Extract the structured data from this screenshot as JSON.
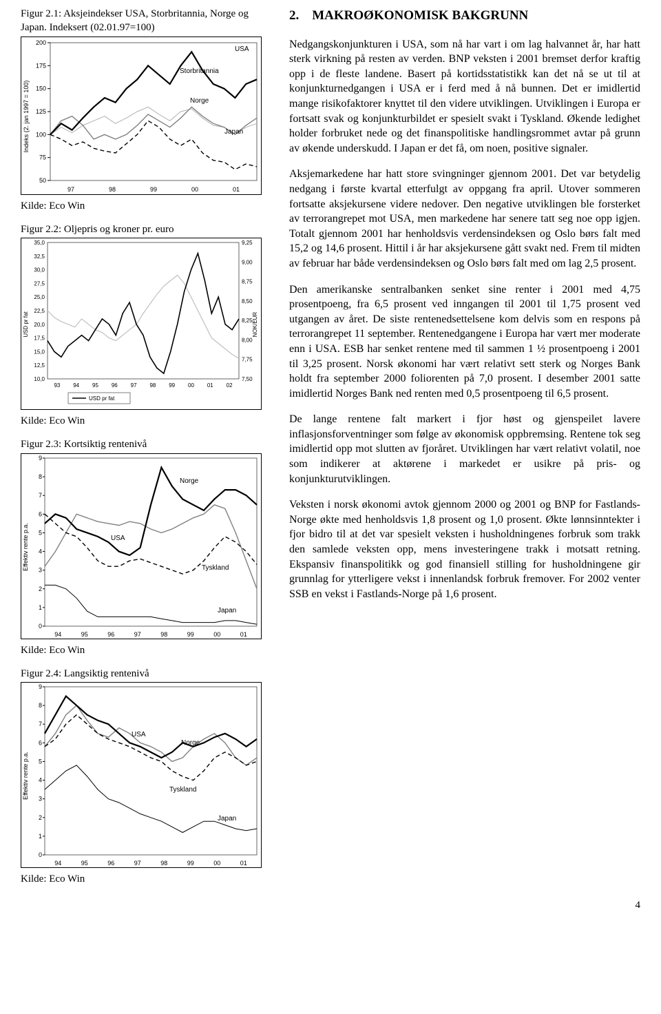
{
  "section": {
    "number": "2.",
    "title": "MAKROØKONOMISK BAKGRUNN"
  },
  "paragraphs": [
    "Nedgangskonjunkturen i USA, som nå har vart i om lag halvannet år, har hatt sterk virkning på resten av verden. BNP veksten i 2001 bremset derfor kraftig opp i de fleste landene. Basert på kortidsstatistikk kan det nå se ut til at konjunkturnedgangen i USA er i ferd med å nå bunnen. Det er imidlertid mange risikofaktorer knyttet til den videre utviklingen. Utviklingen i Europa er fortsatt svak og konjunkturbildet er spesielt svakt i Tyskland. Økende ledighet holder forbruket nede og det finanspolitiske handlingsrommet avtar på grunn av økende underskudd. I Japan er det få, om noen, positive signaler.",
    "Aksjemarkedene har hatt store svingninger gjennom 2001. Det var betydelig nedgang i første kvartal etterfulgt av oppgang fra april. Utover sommeren fortsatte aksjekursene videre nedover. Den negative utviklingen ble forsterket av terrorangrepet mot USA, men markedene har senere tatt seg noe opp igjen.  Totalt gjennom 2001 har henholdsvis verdensindeksen og Oslo børs falt med 15,2 og 14,6 prosent. Hittil i år har aksjekursene gått svakt ned. Frem til midten av februar har både verdensindeksen og Oslo børs falt med om lag 2,5 prosent.",
    "Den amerikanske sentralbanken senket sine renter i 2001 med 4,75 prosentpoeng, fra 6,5 prosent ved inngangen til 2001 til 1,75 prosent ved utgangen av året. De siste rentenedsettelsene kom delvis som en respons på terrorangrepet 11 september.  Rentenedgangene i Europa har vært mer moderate enn i USA. ESB har senket rentene med til sammen 1 ½ prosentpoeng i 2001 til 3,25 prosent.  Norsk økonomi har vært relativt sett sterk og Norges Bank holdt fra september 2000 foliorenten på 7,0 prosent. I desember 2001 satte imidlertid Norges Bank ned renten med 0,5 prosentpoeng til 6,5 prosent.",
    "De lange rentene falt markert i fjor høst og gjenspeilet lavere inflasjonsforventninger som følge av økonomisk oppbremsing.  Rentene tok seg imidlertid opp mot slutten av fjoråret. Utviklingen har vært relativt volatil, noe som indikerer at aktørene i markedet er usikre på pris- og konjunkturutviklingen.",
    "Veksten i norsk økonomi avtok gjennom 2000 og 2001 og BNP for Fastlands-Norge økte med henholdsvis 1,8 prosent og 1,0 prosent. Økte lønnsinntekter i fjor bidro til at det var spesielt veksten i husholdningenes forbruk som trakk den samlede veksten opp, mens investeringene trakk i motsatt retning. Ekspansiv finanspolitikk og god finansiell stilling for husholdningene gir grunnlag for ytterligere vekst i innenlandsk forbruk fremover. For 2002 venter SSB en vekst i Fastlands-Norge på 1,6 prosent."
  ],
  "page_number": "4",
  "fig21": {
    "title": "Figur 2.1: Aksjeindekser USA, Storbritannia, Norge og Japan. Indeksert (02.01.97=100)",
    "kilde": "Kilde: Eco Win",
    "ylabel": "Indeks (2. jan 1997 = 100)",
    "ylim": [
      50,
      200
    ],
    "ytick_step": 25,
    "xticks": [
      "97",
      "98",
      "99",
      "00",
      "01"
    ],
    "series_labels": {
      "usa": "USA",
      "gb": "Storbritannia",
      "norge": "Norge",
      "japan": "Japan"
    },
    "colors": {
      "usa": "#000000",
      "gb": "#b0b0b0",
      "norge": "#808080",
      "japan": "#000000"
    },
    "styles": {
      "usa": "solid-thick",
      "gb": "solid-thin",
      "norge": "solid-mid",
      "japan": "dashed"
    },
    "data": {
      "usa": [
        100,
        112,
        105,
        118,
        130,
        140,
        135,
        150,
        160,
        175,
        165,
        155,
        175,
        190,
        170,
        155,
        150,
        140,
        155,
        160
      ],
      "gb": [
        100,
        108,
        102,
        110,
        115,
        120,
        112,
        118,
        125,
        130,
        122,
        115,
        125,
        128,
        118,
        110,
        108,
        100,
        108,
        112
      ],
      "norge": [
        100,
        115,
        120,
        110,
        95,
        100,
        95,
        100,
        110,
        122,
        115,
        108,
        118,
        130,
        120,
        112,
        108,
        100,
        110,
        118
      ],
      "japan": [
        100,
        95,
        88,
        92,
        85,
        82,
        80,
        90,
        100,
        115,
        108,
        95,
        88,
        95,
        80,
        72,
        70,
        62,
        68,
        65
      ]
    }
  },
  "fig22": {
    "title": "Figur 2.2: Oljepris og kroner pr. euro",
    "kilde": "Kilde: Eco Win",
    "ylabel_left": "USD pr fat",
    "ylabel_right": "NOK/EUR",
    "ylim_left": [
      10.0,
      35.0
    ],
    "ytick_left_step": 2.5,
    "ylim_right": [
      7.5,
      9.25
    ],
    "ytick_right_step": 0.25,
    "xticks": [
      "93",
      "94",
      "95",
      "96",
      "97",
      "98",
      "99",
      "00",
      "01",
      "02"
    ],
    "legend": "USD pr fat",
    "colors": {
      "oil": "#000000",
      "nokeur": "#c0c0c0"
    },
    "data": {
      "oil": [
        17,
        15,
        14,
        16,
        17,
        18,
        17,
        19,
        21,
        20,
        18,
        22,
        24,
        20,
        18,
        14,
        12,
        11,
        15,
        20,
        26,
        30,
        33,
        28,
        22,
        25,
        20,
        19,
        21
      ],
      "nokeur": [
        50,
        45,
        42,
        40,
        38,
        44,
        40,
        36,
        34,
        30,
        28,
        32,
        36,
        40,
        48,
        55,
        62,
        68,
        72,
        76,
        70,
        60,
        50,
        40,
        30,
        26,
        22,
        18,
        15
      ]
    }
  },
  "fig23": {
    "title": "Figur 2.3: Kortsiktig rentenivå",
    "kilde": "Kilde: Eco Win",
    "ylabel": "Effektiv rente p.a.",
    "ylim": [
      0,
      9
    ],
    "ytick_step": 1,
    "xticks": [
      "94",
      "95",
      "96",
      "97",
      "98",
      "99",
      "00",
      "01"
    ],
    "series_labels": {
      "usa": "USA",
      "norge": "Norge",
      "tyskland": "Tyskland",
      "japan": "Japan"
    },
    "colors": {
      "usa": "#808080",
      "norge": "#000000",
      "tyskland": "#000000",
      "japan": "#000000"
    },
    "styles": {
      "usa": "solid-mid",
      "norge": "solid-thick",
      "tyskland": "dashed",
      "japan": "solid-thin"
    },
    "data": {
      "norge": [
        5.5,
        6.0,
        5.8,
        5.2,
        5.0,
        4.8,
        4.5,
        4.0,
        3.8,
        4.2,
        6.5,
        8.5,
        7.5,
        6.8,
        6.5,
        6.2,
        6.8,
        7.3,
        7.3,
        7.0,
        6.5
      ],
      "usa": [
        3.2,
        4.0,
        5.0,
        6.0,
        5.8,
        5.6,
        5.5,
        5.4,
        5.6,
        5.5,
        5.2,
        5.0,
        5.2,
        5.5,
        5.8,
        6.0,
        6.5,
        6.3,
        5.0,
        3.5,
        2.0
      ],
      "tyskland": [
        6.0,
        5.5,
        5.0,
        4.8,
        4.2,
        3.5,
        3.2,
        3.2,
        3.5,
        3.6,
        3.4,
        3.2,
        3.0,
        2.8,
        3.0,
        3.5,
        4.2,
        4.8,
        4.5,
        4.0,
        3.3
      ],
      "japan": [
        2.2,
        2.2,
        2.0,
        1.5,
        0.8,
        0.5,
        0.5,
        0.5,
        0.5,
        0.5,
        0.5,
        0.4,
        0.3,
        0.2,
        0.2,
        0.2,
        0.2,
        0.3,
        0.3,
        0.2,
        0.1
      ]
    }
  },
  "fig24": {
    "title": "Figur 2.4: Langsiktig rentenivå",
    "kilde": "Kilde: Eco Win",
    "ylabel": "Effektiv rente p.a.",
    "ylim": [
      0,
      9
    ],
    "ytick_step": 1,
    "xticks": [
      "94",
      "95",
      "96",
      "97",
      "98",
      "99",
      "00",
      "01"
    ],
    "series_labels": {
      "usa": "USA",
      "norge": "Norge",
      "tyskland": "Tyskland",
      "japan": "Japan"
    },
    "colors": {
      "usa": "#808080",
      "norge": "#000000",
      "tyskland": "#000000",
      "japan": "#000000"
    },
    "styles": {
      "usa": "solid-mid",
      "norge": "solid-thick",
      "tyskland": "dashed",
      "japan": "solid-thin"
    },
    "data": {
      "norge": [
        6.5,
        7.5,
        8.5,
        8.0,
        7.5,
        7.2,
        7.0,
        6.5,
        6.0,
        5.8,
        5.5,
        5.2,
        5.5,
        6.0,
        5.8,
        6.0,
        6.3,
        6.5,
        6.2,
        5.8,
        6.2
      ],
      "usa": [
        5.8,
        6.5,
        7.5,
        8.0,
        7.2,
        6.5,
        6.3,
        6.8,
        6.5,
        6.0,
        5.8,
        5.5,
        5.0,
        5.2,
        5.8,
        6.2,
        6.5,
        6.0,
        5.2,
        4.8,
        5.2
      ],
      "tyskland": [
        5.8,
        6.2,
        7.0,
        7.5,
        7.0,
        6.5,
        6.2,
        6.0,
        5.8,
        5.5,
        5.2,
        5.0,
        4.5,
        4.2,
        4.0,
        4.5,
        5.2,
        5.5,
        5.2,
        4.8,
        5.0
      ],
      "japan": [
        3.5,
        4.0,
        4.5,
        4.8,
        4.2,
        3.5,
        3.0,
        2.8,
        2.5,
        2.2,
        2.0,
        1.8,
        1.5,
        1.2,
        1.5,
        1.8,
        1.8,
        1.6,
        1.4,
        1.3,
        1.4
      ]
    }
  }
}
